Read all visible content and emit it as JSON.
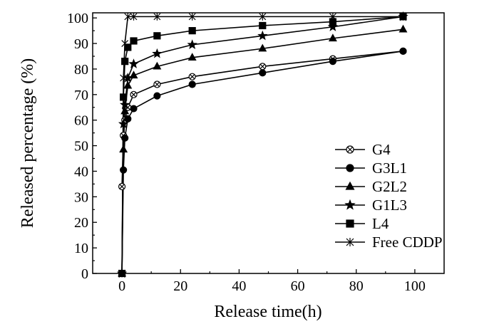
{
  "chart_data": {
    "type": "line",
    "title": "",
    "xlabel": "Release time(h)",
    "ylabel": "Released percentage (%)",
    "xlim": [
      -10,
      110
    ],
    "ylim": [
      0,
      102
    ],
    "xticks": [
      0,
      20,
      40,
      60,
      80,
      100
    ],
    "yticks": [
      0,
      10,
      20,
      30,
      40,
      50,
      60,
      70,
      80,
      90,
      100
    ],
    "grid": false,
    "legend_position": "bottom-right",
    "series": [
      {
        "name": "G4",
        "marker": "x-circle",
        "x": [
          0,
          0.5,
          1,
          2,
          4,
          12,
          24,
          48,
          72,
          96
        ],
        "y": [
          34,
          54,
          60,
          65,
          70,
          74,
          77,
          81,
          84,
          87
        ]
      },
      {
        "name": "G3L1",
        "marker": "circle",
        "x": [
          0,
          0.5,
          1,
          2,
          4,
          12,
          24,
          48,
          72,
          96
        ],
        "y": [
          0,
          40.5,
          53,
          60.5,
          64.5,
          69.5,
          74,
          78.5,
          83,
          87
        ]
      },
      {
        "name": "G2L2",
        "marker": "triangle",
        "x": [
          0,
          0.5,
          1,
          2,
          4,
          12,
          24,
          48,
          72,
          96
        ],
        "y": [
          0,
          48.5,
          63.5,
          73.5,
          77.5,
          81,
          84.5,
          88,
          92,
          95.5
        ]
      },
      {
        "name": "G1L3",
        "marker": "star",
        "x": [
          0,
          0.5,
          1,
          2,
          4,
          12,
          24,
          48,
          72,
          96
        ],
        "y": [
          0,
          58.5,
          66,
          76.5,
          82,
          86,
          89.5,
          93,
          96.5,
          100.5
        ]
      },
      {
        "name": "L4",
        "marker": "square",
        "x": [
          0,
          0.5,
          1,
          2,
          4,
          12,
          24,
          48,
          72,
          96
        ],
        "y": [
          0,
          69,
          83,
          88.5,
          91,
          93,
          95,
          97,
          98.5,
          100.5
        ]
      },
      {
        "name": "Free CDDP",
        "marker": "asterisk",
        "x": [
          0,
          0.5,
          1,
          2,
          4,
          12,
          24,
          48,
          72,
          96
        ],
        "y": [
          0,
          76.5,
          90,
          100.5,
          100.5,
          100.5,
          100.5,
          100.5,
          100.5,
          100.5
        ]
      }
    ]
  }
}
